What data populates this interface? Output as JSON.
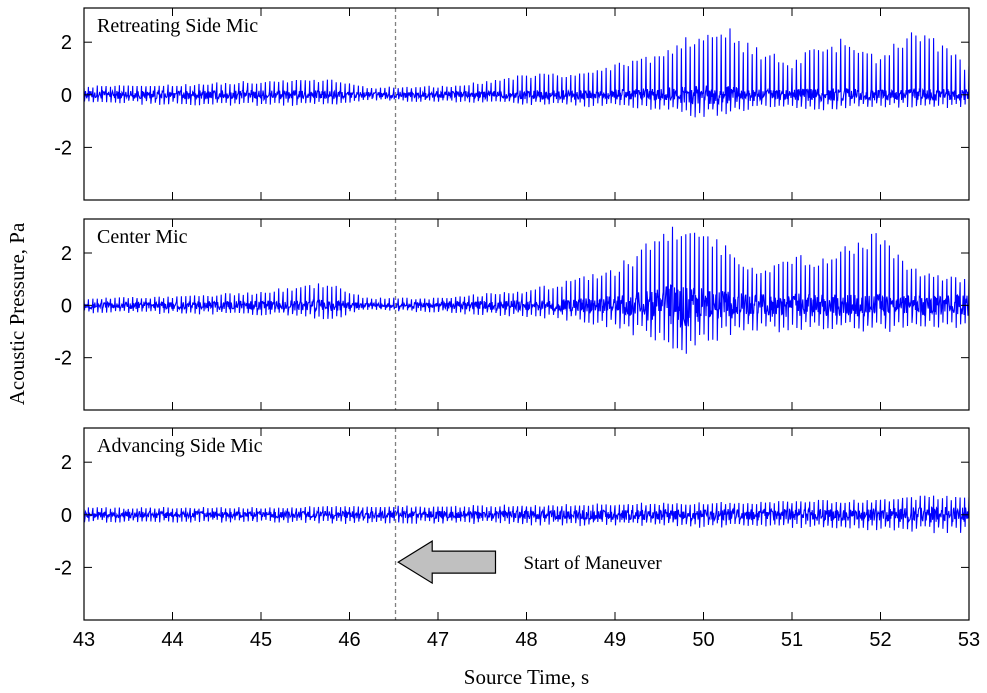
{
  "chart_data": {
    "type": "line",
    "ylabel": "Acoustic Pressure, Pa",
    "xlabel": "Source Time, s",
    "xlim": [
      43,
      53
    ],
    "x_ticks": [
      "43",
      "44",
      "45",
      "46",
      "47",
      "48",
      "49",
      "50",
      "51",
      "52",
      "53"
    ],
    "y_ticks": [
      "2",
      "0",
      "-2"
    ],
    "ylim": [
      -4,
      3.3
    ],
    "series_color": "#0000ff",
    "marker_line": {
      "x": 46.52,
      "style": "dashed",
      "color": "#808080"
    },
    "annotation": {
      "text": "Start of Maneuver",
      "arrow_x_start": 47.65,
      "arrow_x_end": 46.55,
      "y": -1.8,
      "panel": 2
    },
    "panels": [
      {
        "title": "Retreating Side Mic",
        "envelope_x": [
          43,
          44,
          45,
          45.8,
          46.2,
          47,
          47.5,
          48,
          48.5,
          49,
          49.5,
          49.8,
          50,
          50.2,
          50.5,
          51,
          51.3,
          51.6,
          52,
          52.3,
          52.6,
          53
        ],
        "envelope_upper": [
          0.35,
          0.4,
          0.55,
          0.6,
          0.3,
          0.35,
          0.5,
          0.8,
          0.9,
          1.2,
          1.6,
          2.4,
          2.5,
          2.8,
          2.0,
          1.3,
          2.0,
          2.2,
          1.5,
          2.5,
          2.3,
          1.1
        ],
        "envelope_lower": [
          -0.35,
          -0.4,
          -0.45,
          -0.4,
          -0.25,
          -0.3,
          -0.35,
          -0.4,
          -0.45,
          -0.5,
          -0.6,
          -0.8,
          -0.95,
          -0.85,
          -0.6,
          -0.5,
          -0.6,
          -0.55,
          -0.5,
          -0.5,
          -0.55,
          -0.5
        ]
      },
      {
        "title": "Center Mic",
        "envelope_x": [
          43,
          44,
          45,
          45.5,
          45.8,
          46.2,
          47,
          47.5,
          48,
          48.5,
          49,
          49.3,
          49.6,
          49.75,
          50,
          50.3,
          50.6,
          51,
          51.3,
          51.6,
          52,
          52.3,
          52.6,
          53
        ],
        "envelope_upper": [
          0.3,
          0.35,
          0.55,
          0.8,
          0.9,
          0.3,
          0.3,
          0.45,
          0.6,
          1.0,
          1.5,
          2.2,
          3.2,
          3.3,
          2.8,
          2.4,
          1.4,
          2.0,
          1.9,
          2.4,
          2.9,
          1.5,
          1.3,
          1.0
        ],
        "envelope_lower": [
          -0.3,
          -0.35,
          -0.4,
          -0.5,
          -0.55,
          -0.2,
          -0.3,
          -0.4,
          -0.45,
          -0.6,
          -0.9,
          -1.3,
          -1.9,
          -2.1,
          -1.6,
          -1.2,
          -1.0,
          -1.1,
          -1.0,
          -1.0,
          -1.1,
          -0.9,
          -0.9,
          -1.0
        ]
      },
      {
        "title": "Advancing Side Mic",
        "envelope_x": [
          43,
          44,
          45,
          46,
          47,
          48,
          49,
          50,
          51,
          52,
          52.5,
          53
        ],
        "envelope_upper": [
          0.3,
          0.3,
          0.3,
          0.35,
          0.35,
          0.4,
          0.45,
          0.5,
          0.55,
          0.6,
          0.75,
          0.7
        ],
        "envelope_lower": [
          -0.3,
          -0.3,
          -0.3,
          -0.35,
          -0.35,
          -0.4,
          -0.45,
          -0.5,
          -0.55,
          -0.6,
          -0.7,
          -0.7
        ]
      }
    ]
  }
}
